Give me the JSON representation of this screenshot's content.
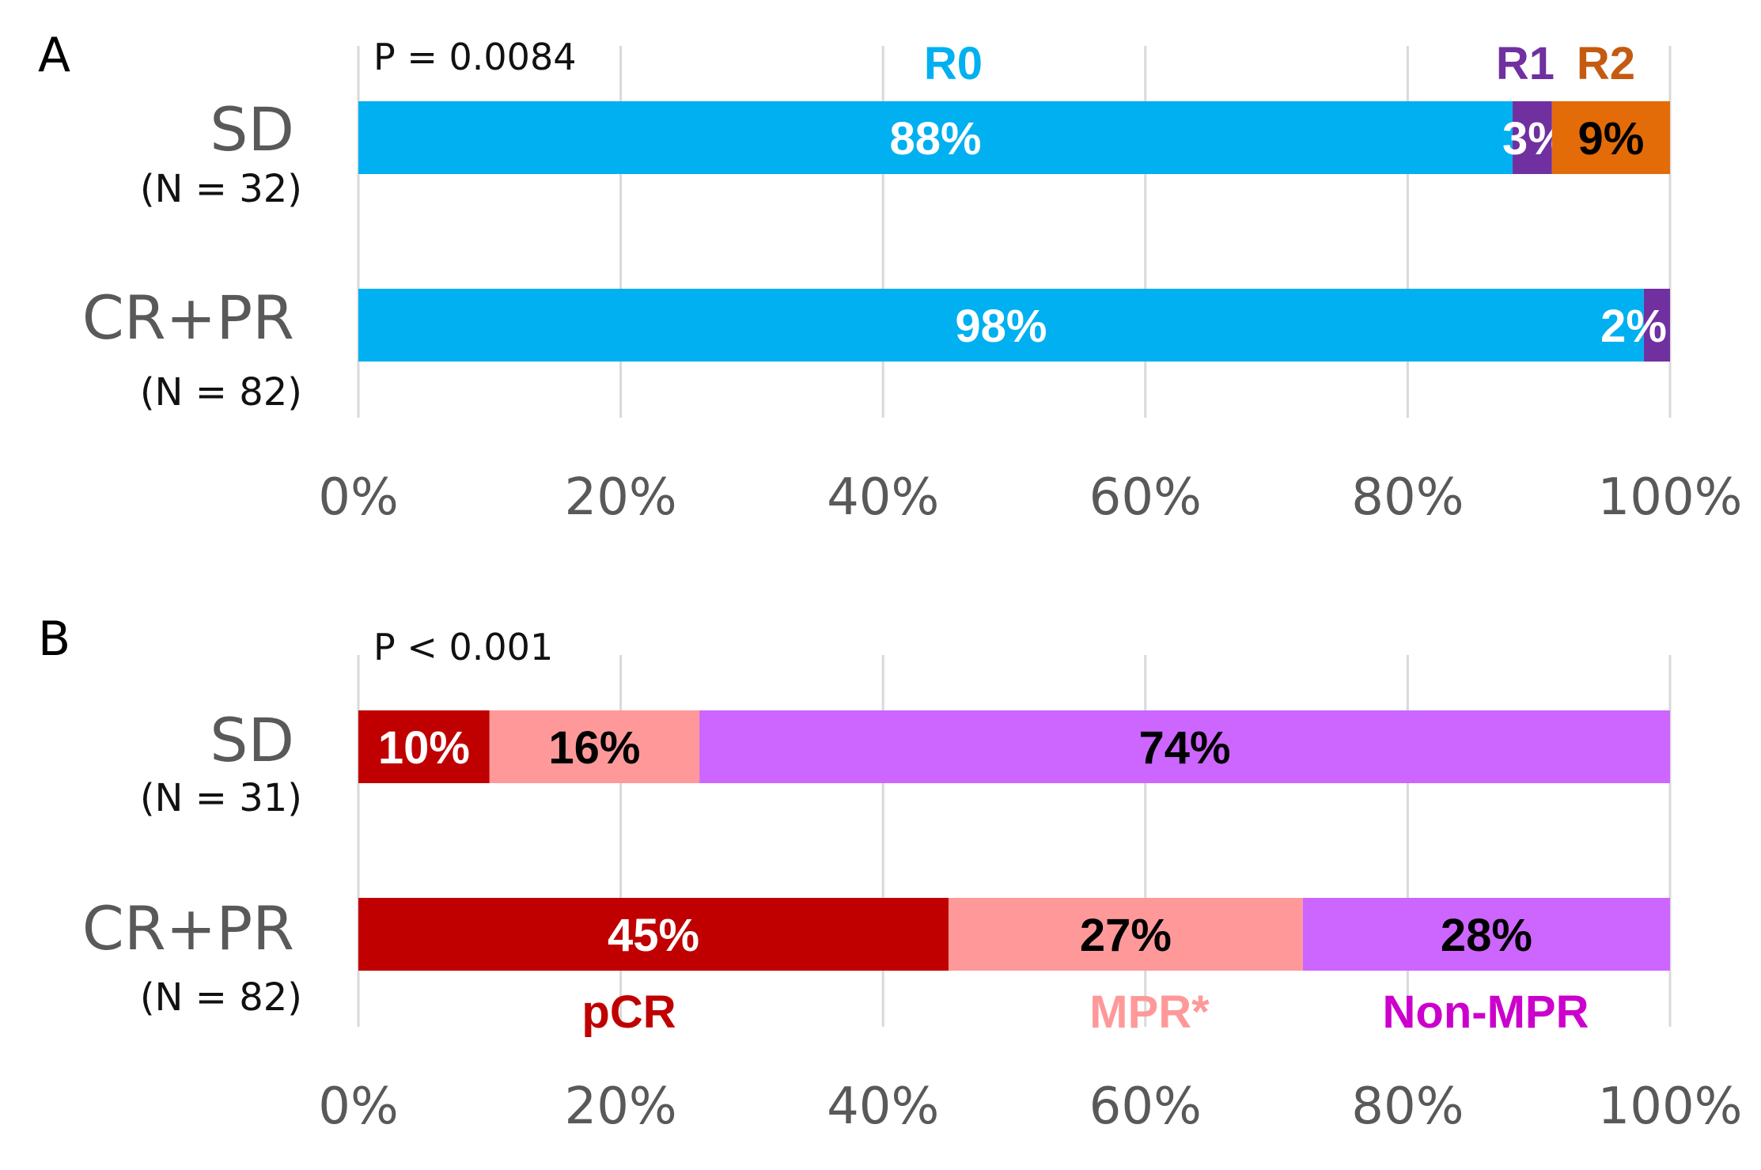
{
  "chart_data": [
    {
      "type": "bar",
      "orientation": "horizontal",
      "stacked": true,
      "panel": "A",
      "annotation": "P = 0.0084",
      "categories": [
        {
          "name": "SD",
          "n": "(N = 32)"
        },
        {
          "name": "CR+PR",
          "n": "(N = 82)"
        }
      ],
      "series": [
        {
          "name": "R0",
          "color": "#00B0F0",
          "name_color": "#00B0F0",
          "values": [
            88,
            98
          ],
          "labels": [
            "88%",
            "98%"
          ],
          "label_colors": [
            "#ffffff",
            "#ffffff"
          ]
        },
        {
          "name": "R1",
          "color": "#7030A0",
          "name_color": "#7030A0",
          "values": [
            3,
            2
          ],
          "labels": [
            "3%",
            "2%"
          ],
          "label_colors": [
            "#ffffff",
            "#ffffff"
          ]
        },
        {
          "name": "R2",
          "color": "#E36C09",
          "name_color": "#C55A11",
          "values": [
            9,
            0
          ],
          "labels": [
            "9%",
            ""
          ],
          "label_colors": [
            "#000000",
            "#000000"
          ]
        }
      ],
      "xlim": [
        0,
        100
      ],
      "xticks": [
        "0%",
        "20%",
        "40%",
        "60%",
        "80%",
        "100%"
      ],
      "grid": true,
      "legend_position": "top"
    },
    {
      "type": "bar",
      "orientation": "horizontal",
      "stacked": true,
      "panel": "B",
      "annotation": "P < 0.001",
      "categories": [
        {
          "name": "SD",
          "n": "(N = 31)"
        },
        {
          "name": "CR+PR",
          "n": "(N = 82)"
        }
      ],
      "series": [
        {
          "name": "pCR",
          "color": "#C00000",
          "name_color": "#C00000",
          "values": [
            10,
            45
          ],
          "labels": [
            "10%",
            "45%"
          ],
          "label_colors": [
            "#ffffff",
            "#ffffff"
          ]
        },
        {
          "name": "MPR*",
          "color": "#FF9999",
          "name_color": "#FF9999",
          "values": [
            16,
            27
          ],
          "labels": [
            "16%",
            "27%"
          ],
          "label_colors": [
            "#000000",
            "#000000"
          ]
        },
        {
          "name": "Non-MPR",
          "color": "#CC66FF",
          "name_color": "#CC00CC",
          "values": [
            74,
            28
          ],
          "labels": [
            "74%",
            "28%"
          ],
          "label_colors": [
            "#000000",
            "#000000"
          ]
        }
      ],
      "xlim": [
        0,
        100
      ],
      "xticks": [
        "0%",
        "20%",
        "40%",
        "60%",
        "80%",
        "100%"
      ],
      "grid": true,
      "legend_position": "bottom"
    }
  ]
}
